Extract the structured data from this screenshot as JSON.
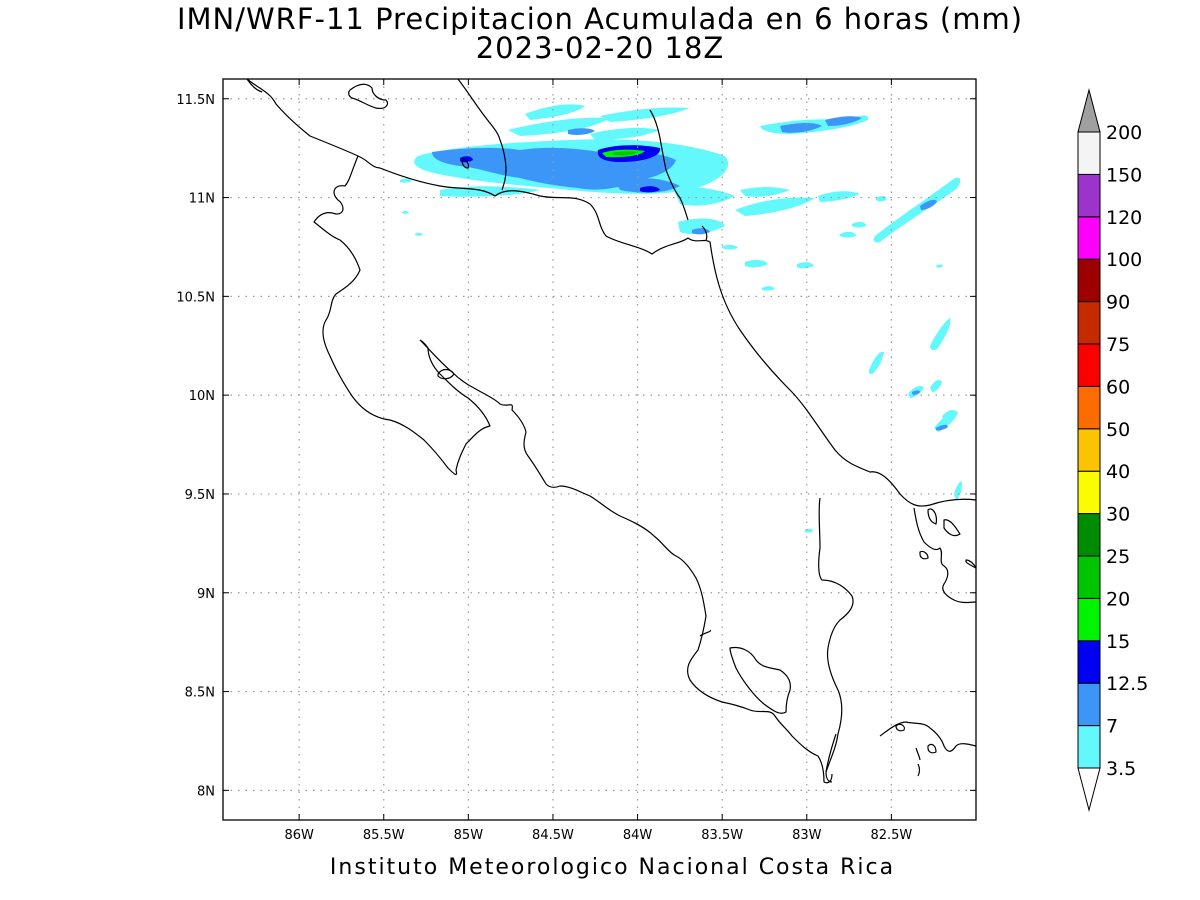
{
  "title_line1": "IMN/WRF-11 Precipitacion Acumulada en 6 horas (mm)",
  "title_line2": "2023-02-20 18Z",
  "footer": "Instituto Meteorologico Nacional Costa Rica",
  "map": {
    "lon_range": [
      -86.45,
      -82.0
    ],
    "lat_range": [
      7.85,
      11.6
    ],
    "x_ticks": [
      {
        "value": -86.0,
        "label": "86W"
      },
      {
        "value": -85.5,
        "label": "85.5W"
      },
      {
        "value": -85.0,
        "label": "85W"
      },
      {
        "value": -84.5,
        "label": "84.5W"
      },
      {
        "value": -84.0,
        "label": "84W"
      },
      {
        "value": -83.5,
        "label": "83.5W"
      },
      {
        "value": -83.0,
        "label": "83W"
      },
      {
        "value": -82.5,
        "label": "82.5W"
      }
    ],
    "y_ticks": [
      {
        "value": 11.5,
        "label": "11.5N"
      },
      {
        "value": 11.0,
        "label": "11N"
      },
      {
        "value": 10.5,
        "label": "10.5N"
      },
      {
        "value": 10.0,
        "label": "10N"
      },
      {
        "value": 9.5,
        "label": "9.5N"
      },
      {
        "value": 9.0,
        "label": "9N"
      },
      {
        "value": 8.5,
        "label": "8.5N"
      },
      {
        "value": 8.0,
        "label": "8N"
      }
    ],
    "grid": true,
    "colors": {
      "frame": "#000000",
      "grid": "#9a9a9a",
      "coast": "#000000"
    }
  },
  "colorbar": {
    "levels": [
      "3.5",
      "7",
      "12.5",
      "15",
      "20",
      "25",
      "30",
      "40",
      "50",
      "60",
      "75",
      "90",
      "100",
      "120",
      "150",
      "200"
    ],
    "colors": [
      "#62f8fc",
      "#3c96f8",
      "#0000f4",
      "#00f400",
      "#00c400",
      "#008c00",
      "#fcfc00",
      "#fcc400",
      "#fc6c00",
      "#fc0000",
      "#c42c00",
      "#9c0000",
      "#fc00fc",
      "#9c34cc",
      "#f4f4f4"
    ],
    "under_color": "#ffffff",
    "over_color": "#a0a0a0"
  }
}
